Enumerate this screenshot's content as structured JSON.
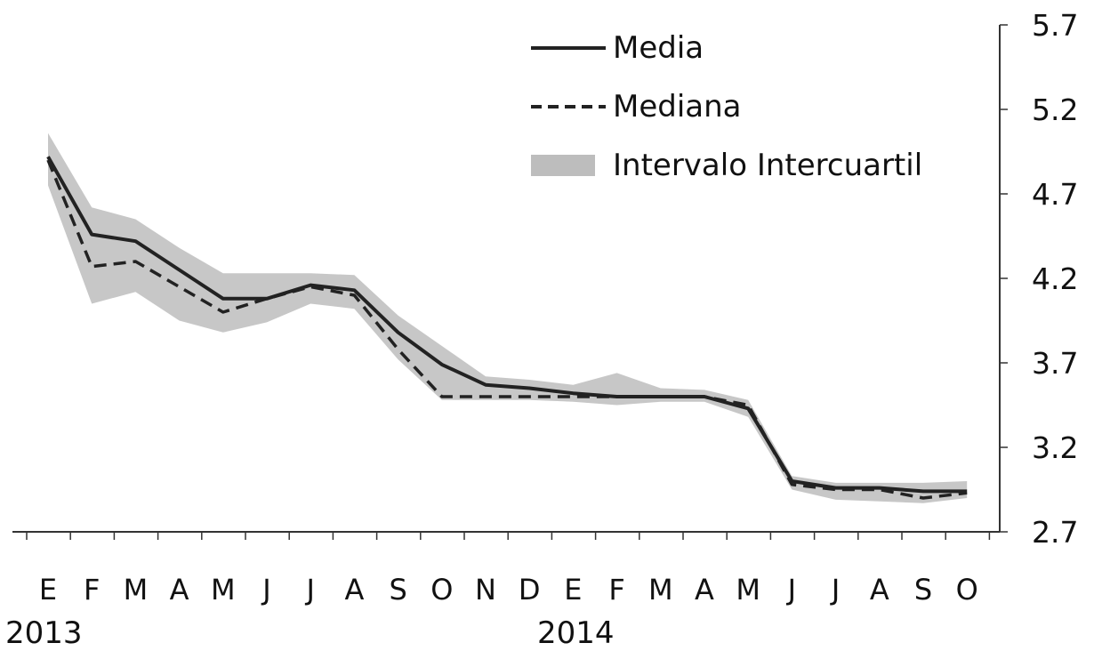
{
  "chart_data": {
    "type": "line",
    "categories": [
      "E",
      "F",
      "M",
      "A",
      "M",
      "J",
      "J",
      "A",
      "S",
      "O",
      "N",
      "D",
      "E",
      "F",
      "M",
      "A",
      "M",
      "J",
      "J",
      "A",
      "S",
      "O"
    ],
    "year_labels": [
      "2013",
      "2014"
    ],
    "series": [
      {
        "name": "Media",
        "style": "solid",
        "values": [
          4.92,
          4.46,
          4.42,
          4.25,
          4.08,
          4.08,
          4.16,
          4.13,
          3.88,
          3.69,
          3.57,
          3.55,
          3.52,
          3.5,
          3.5,
          3.5,
          3.43,
          3.0,
          2.96,
          2.96,
          2.94,
          2.94
        ]
      },
      {
        "name": "Mediana",
        "style": "dashed",
        "values": [
          4.9,
          4.27,
          4.3,
          4.15,
          4.0,
          4.08,
          4.15,
          4.1,
          3.78,
          3.5,
          3.5,
          3.5,
          3.5,
          3.5,
          3.5,
          3.5,
          3.45,
          2.98,
          2.95,
          2.95,
          2.9,
          2.93
        ]
      }
    ],
    "band": {
      "name": "Intervalo Intercuartil",
      "lower": [
        4.75,
        4.05,
        4.12,
        3.95,
        3.88,
        3.94,
        4.05,
        4.02,
        3.72,
        3.48,
        3.48,
        3.48,
        3.47,
        3.45,
        3.47,
        3.47,
        3.38,
        2.95,
        2.89,
        2.88,
        2.87,
        2.9
      ],
      "upper": [
        5.06,
        4.62,
        4.55,
        4.38,
        4.23,
        4.23,
        4.23,
        4.22,
        3.98,
        3.8,
        3.62,
        3.6,
        3.57,
        3.64,
        3.55,
        3.54,
        3.48,
        3.03,
        2.99,
        2.99,
        2.99,
        3.0
      ]
    },
    "y_ticks": [
      "5.7",
      "5.2",
      "4.7",
      "4.2",
      "3.7",
      "3.2",
      "2.7"
    ],
    "ylim": [
      2.7,
      5.7
    ],
    "y_axis_side": "right",
    "grid": false,
    "legend_position": "top-right",
    "colors": {
      "line": "#222222",
      "band": "#bdbdbd",
      "axis": "#333333"
    }
  }
}
